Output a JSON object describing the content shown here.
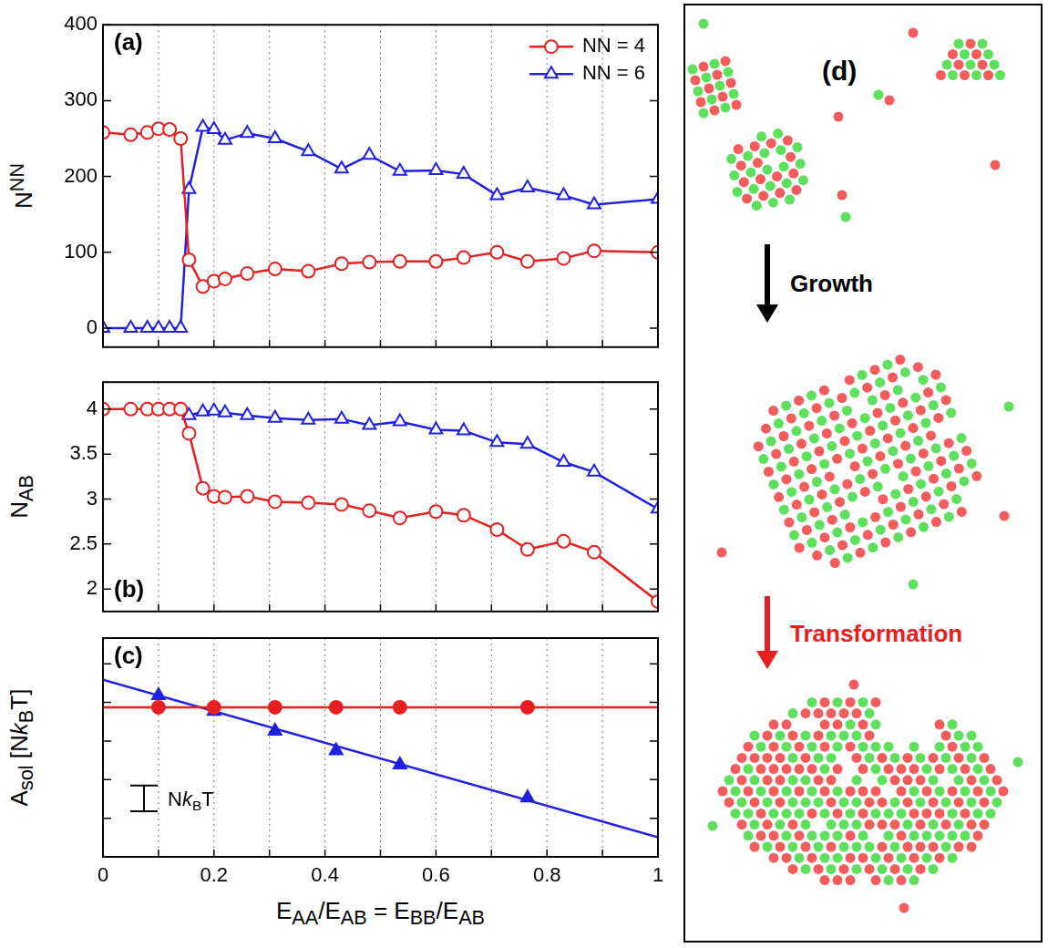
{
  "chart_data": [
    {
      "type": "line",
      "label": "(a)",
      "ylabel": [
        {
          "text": "N"
        },
        {
          "sup": "NN"
        }
      ],
      "x": [
        0,
        0.05,
        0.08,
        0.1,
        0.12,
        0.14,
        0.155,
        0.18,
        0.2,
        0.22,
        0.26,
        0.31,
        0.37,
        0.43,
        0.48,
        0.535,
        0.6,
        0.65,
        0.71,
        0.765,
        0.83,
        0.885,
        1
      ],
      "series": [
        {
          "name": "NN = 4",
          "color": "#e62020",
          "marker": "open_circle",
          "line_style": "solid",
          "values": [
            258,
            255,
            258,
            263,
            262,
            250,
            90,
            55,
            62,
            65,
            72,
            78,
            75,
            85,
            87,
            88,
            88,
            93,
            100,
            88,
            92,
            102,
            100
          ]
        },
        {
          "name": "NN = 6",
          "color": "#2020e0",
          "marker": "open_triangle",
          "line_style": "solid",
          "values": [
            0,
            0,
            0,
            0,
            0,
            0,
            183,
            265,
            262,
            248,
            257,
            250,
            233,
            210,
            228,
            207,
            208,
            203,
            175,
            185,
            175,
            163,
            170
          ]
        }
      ],
      "xlim": [
        0,
        1
      ],
      "xticks": [
        0,
        {
          "value": 0.1,
          "label": null
        },
        0.2,
        {
          "value": 0.3,
          "label": null
        },
        0.4,
        {
          "value": 0.5,
          "label": null
        },
        0.6,
        {
          "value": 0.7,
          "label": null
        },
        0.8,
        {
          "value": 0.9,
          "label": null
        },
        1
      ],
      "ylim": [
        -25,
        400
      ],
      "yticks": [
        0,
        100,
        200,
        300,
        400
      ],
      "grid": "x",
      "legend": "upper right",
      "tick_labels": "y"
    },
    {
      "type": "line",
      "label": "(b)",
      "ylabel": [
        {
          "text": "N"
        },
        {
          "sub": "AB"
        }
      ],
      "x": [
        0,
        0.05,
        0.08,
        0.1,
        0.12,
        0.14,
        0.155,
        0.18,
        0.2,
        0.22,
        0.26,
        0.31,
        0.37,
        0.43,
        0.48,
        0.535,
        0.6,
        0.65,
        0.71,
        0.765,
        0.83,
        0.885,
        1
      ],
      "series": [
        {
          "name": "NN = 4",
          "color": "#e62020",
          "marker": "open_circle",
          "line_style": "solid",
          "values": [
            4,
            4,
            4,
            4,
            4,
            4,
            3.73,
            3.12,
            3.03,
            3.02,
            3.03,
            2.97,
            2.96,
            2.94,
            2.87,
            2.79,
            2.86,
            2.82,
            2.66,
            2.44,
            2.53,
            2.41,
            1.86
          ]
        },
        {
          "name": "NN = 6",
          "color": "#2020e0",
          "marker": "open_triangle",
          "line_style": "solid",
          "values": [
            null,
            null,
            null,
            null,
            null,
            null,
            3.93,
            3.97,
            3.98,
            3.96,
            3.93,
            3.9,
            3.88,
            3.89,
            3.82,
            3.86,
            3.77,
            3.76,
            3.63,
            3.61,
            3.41,
            3.3,
            2.89
          ]
        }
      ],
      "xlim": [
        0,
        1
      ],
      "xticks": [
        0,
        {
          "value": 0.1,
          "label": null
        },
        0.2,
        {
          "value": 0.3,
          "label": null
        },
        0.4,
        {
          "value": 0.5,
          "label": null
        },
        0.6,
        {
          "value": 0.7,
          "label": null
        },
        0.8,
        {
          "value": 0.9,
          "label": null
        },
        1
      ],
      "ylim": [
        1.75,
        4.3
      ],
      "yticks": [
        2,
        2.5,
        3,
        3.5,
        4
      ],
      "grid": "x",
      "tick_labels": "y"
    },
    {
      "type": "scatter",
      "label": "(c)",
      "ylabel": [
        {
          "text": "A"
        },
        {
          "sub": "sol"
        },
        {
          "text": " [N"
        },
        {
          "text": "k",
          "italic": true
        },
        {
          "sub": "B"
        },
        {
          "text": "T]"
        }
      ],
      "xlabel": [
        {
          "text": "E"
        },
        {
          "sub": "AA"
        },
        {
          "text": "/E"
        },
        {
          "sub": "AB"
        },
        {
          "text": " = E"
        },
        {
          "sub": "BB"
        },
        {
          "text": "/E"
        },
        {
          "sub": "AB"
        }
      ],
      "series": [
        {
          "color": "#e62020",
          "marker": "none",
          "line_style": "solid",
          "x": [
            0,
            1
          ],
          "values": [
            5.81,
            5.81
          ]
        },
        {
          "color": "#e62020",
          "marker": "circle",
          "line_style": "none",
          "x": [
            0.1,
            0.2,
            0.31,
            0.42,
            0.535,
            0.765
          ],
          "values": [
            5.81,
            5.81,
            5.81,
            5.81,
            5.81,
            5.81
          ]
        },
        {
          "color": "#2020e0",
          "marker": "none",
          "line_style": "solid",
          "x": [
            0,
            1
          ],
          "values": [
            6.88,
            0.76
          ]
        },
        {
          "color": "#2020e0",
          "marker": "triangle",
          "line_style": "none",
          "x": [
            0.1,
            0.2,
            0.31,
            0.42,
            0.535,
            0.765
          ],
          "values": [
            6.27,
            5.66,
            4.89,
            4.13,
            3.58,
            2.29
          ]
        }
      ],
      "scale_bar": {
        "length": 1,
        "label": [
          {
            "text": "N"
          },
          {
            "text": "k",
            "italic": true
          },
          {
            "sub": "B"
          },
          {
            "text": "T"
          }
        ]
      },
      "xlim": [
        0,
        1
      ],
      "xticks": [
        0,
        {
          "value": 0.1,
          "label": null
        },
        0.2,
        {
          "value": 0.3,
          "label": null
        },
        0.4,
        {
          "value": 0.5,
          "label": null
        },
        0.6,
        {
          "value": 0.7,
          "label": null
        },
        0.8,
        {
          "value": 0.9,
          "label": null
        },
        1
      ],
      "ylim": [
        0,
        8.5
      ],
      "yticks": [
        0,
        1.5,
        3,
        4.5,
        6,
        7.5
      ],
      "grid": "x",
      "tick_labels": "x"
    }
  ],
  "diagram": {
    "label": "(d)",
    "steps": [
      {
        "text": "Growth",
        "color": "#000000"
      },
      {
        "text": "Transformation",
        "color": "#e62020"
      }
    ]
  }
}
